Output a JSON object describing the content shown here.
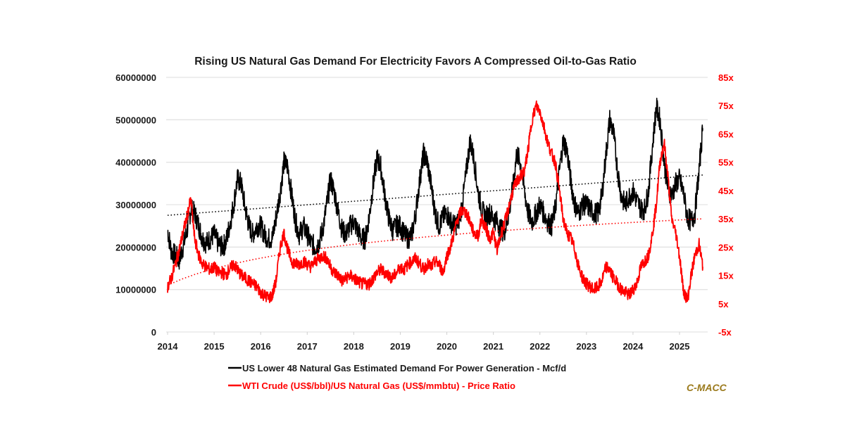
{
  "chart_data": {
    "type": "line",
    "title": "Rising US Natural Gas Demand For Electricity Favors A Compressed Oil-to-Gas Ratio",
    "xlabel": "",
    "ylabel_left": "",
    "ylabel_right": "",
    "x_range": [
      2014.0,
      2025.55
    ],
    "x_ticks": [
      "2014",
      "2015",
      "2016",
      "2017",
      "2018",
      "2019",
      "2020",
      "2021",
      "2022",
      "2023",
      "2024",
      "2025"
    ],
    "y_left": {
      "range": [
        0,
        60000000
      ],
      "ticks": [
        0,
        10000000,
        20000000,
        30000000,
        40000000,
        50000000,
        60000000
      ],
      "tick_labels": [
        "0",
        "10000000",
        "20000000",
        "30000000",
        "40000000",
        "50000000",
        "60000000"
      ]
    },
    "y_right": {
      "range": [
        -5,
        85
      ],
      "ticks": [
        -5,
        5,
        15,
        25,
        35,
        45,
        55,
        65,
        75,
        85
      ],
      "tick_labels": [
        "-5x",
        "5x",
        "15x",
        "25x",
        "35x",
        "45x",
        "55x",
        "65x",
        "75x",
        "85x"
      ]
    },
    "grid": true,
    "legend_position": "bottom",
    "series": [
      {
        "name": "US Lower 48 Natural Gas Estimated Demand For Power Generation - Mcf/d",
        "axis": "left",
        "color": "#000000",
        "x": [
          2014.0,
          2014.08,
          2014.17,
          2014.25,
          2014.33,
          2014.42,
          2014.5,
          2014.58,
          2014.67,
          2014.75,
          2014.83,
          2014.92,
          2015.0,
          2015.08,
          2015.17,
          2015.25,
          2015.33,
          2015.42,
          2015.5,
          2015.58,
          2015.67,
          2015.75,
          2015.83,
          2015.92,
          2016.0,
          2016.08,
          2016.17,
          2016.25,
          2016.33,
          2016.42,
          2016.5,
          2016.58,
          2016.67,
          2016.75,
          2016.83,
          2016.92,
          2017.0,
          2017.08,
          2017.17,
          2017.25,
          2017.33,
          2017.42,
          2017.5,
          2017.58,
          2017.67,
          2017.75,
          2017.83,
          2017.92,
          2018.0,
          2018.08,
          2018.17,
          2018.25,
          2018.33,
          2018.42,
          2018.5,
          2018.58,
          2018.67,
          2018.75,
          2018.83,
          2018.92,
          2019.0,
          2019.08,
          2019.17,
          2019.25,
          2019.33,
          2019.42,
          2019.5,
          2019.58,
          2019.67,
          2019.75,
          2019.83,
          2019.92,
          2020.0,
          2020.08,
          2020.17,
          2020.25,
          2020.33,
          2020.42,
          2020.5,
          2020.58,
          2020.67,
          2020.75,
          2020.83,
          2020.92,
          2021.0,
          2021.08,
          2021.17,
          2021.25,
          2021.33,
          2021.42,
          2021.5,
          2021.58,
          2021.67,
          2021.75,
          2021.83,
          2021.92,
          2022.0,
          2022.08,
          2022.17,
          2022.25,
          2022.33,
          2022.42,
          2022.5,
          2022.58,
          2022.67,
          2022.75,
          2022.83,
          2022.92,
          2023.0,
          2023.08,
          2023.17,
          2023.25,
          2023.33,
          2023.42,
          2023.5,
          2023.58,
          2023.67,
          2023.75,
          2023.83,
          2023.92,
          2024.0,
          2024.08,
          2024.17,
          2024.25,
          2024.33,
          2024.42,
          2024.5,
          2024.58,
          2024.67,
          2024.75,
          2024.83,
          2024.92,
          2025.0,
          2025.08,
          2025.17,
          2025.25,
          2025.33,
          2025.42,
          2025.5
        ],
        "values": [
          24000000,
          19000000,
          18000000,
          17000000,
          20000000,
          24000000,
          29000000,
          28000000,
          25000000,
          22000000,
          21000000,
          22000000,
          23000000,
          21000000,
          20000000,
          21000000,
          25000000,
          30000000,
          36000000,
          35000000,
          29000000,
          25000000,
          23000000,
          25000000,
          25000000,
          23000000,
          22000000,
          22000000,
          27000000,
          33000000,
          40000000,
          39000000,
          32000000,
          26000000,
          23000000,
          25000000,
          23000000,
          21000000,
          20000000,
          21000000,
          24000000,
          30000000,
          36000000,
          33000000,
          28000000,
          24000000,
          23000000,
          25000000,
          26000000,
          24000000,
          22000000,
          22000000,
          27000000,
          35000000,
          41000000,
          39000000,
          32000000,
          27000000,
          24000000,
          25000000,
          25000000,
          23000000,
          22000000,
          23000000,
          28000000,
          36000000,
          42000000,
          40000000,
          34000000,
          28000000,
          25000000,
          27000000,
          28000000,
          26000000,
          25000000,
          26000000,
          30000000,
          38000000,
          45000000,
          41000000,
          33000000,
          29000000,
          27000000,
          28000000,
          27000000,
          26000000,
          24000000,
          24000000,
          28000000,
          34000000,
          42000000,
          40000000,
          33000000,
          28000000,
          26000000,
          28000000,
          30000000,
          28000000,
          26000000,
          25000000,
          29000000,
          38000000,
          45000000,
          43000000,
          35000000,
          30000000,
          28000000,
          30000000,
          30000000,
          29000000,
          28000000,
          28000000,
          32000000,
          42000000,
          50000000,
          47000000,
          38000000,
          32000000,
          30000000,
          32000000,
          33000000,
          31000000,
          29000000,
          29000000,
          33000000,
          44000000,
          53000000,
          50000000,
          40000000,
          34000000,
          32000000,
          35000000,
          36000000,
          33000000,
          27000000,
          26000000,
          28000000,
          38000000,
          48000000
        ]
      },
      {
        "name": "WTI Crude (US$/bbl)/US Natural Gas (US$/mmbtu) - Price Ratio",
        "axis": "right",
        "color": "#ff0000",
        "x": [
          2014.0,
          2014.08,
          2014.17,
          2014.25,
          2014.33,
          2014.42,
          2014.5,
          2014.58,
          2014.67,
          2014.75,
          2014.83,
          2014.92,
          2015.0,
          2015.08,
          2015.17,
          2015.25,
          2015.33,
          2015.42,
          2015.5,
          2015.58,
          2015.67,
          2015.75,
          2015.83,
          2015.92,
          2016.0,
          2016.08,
          2016.17,
          2016.25,
          2016.33,
          2016.42,
          2016.5,
          2016.58,
          2016.67,
          2016.75,
          2016.83,
          2016.92,
          2017.0,
          2017.08,
          2017.17,
          2017.25,
          2017.33,
          2017.42,
          2017.5,
          2017.58,
          2017.67,
          2017.75,
          2017.83,
          2017.92,
          2018.0,
          2018.08,
          2018.17,
          2018.25,
          2018.33,
          2018.42,
          2018.5,
          2018.58,
          2018.67,
          2018.75,
          2018.83,
          2018.92,
          2019.0,
          2019.08,
          2019.17,
          2019.25,
          2019.33,
          2019.42,
          2019.5,
          2019.58,
          2019.67,
          2019.75,
          2019.83,
          2019.92,
          2020.0,
          2020.08,
          2020.17,
          2020.25,
          2020.33,
          2020.42,
          2020.5,
          2020.58,
          2020.67,
          2020.75,
          2020.83,
          2020.92,
          2021.0,
          2021.08,
          2021.17,
          2021.25,
          2021.33,
          2021.42,
          2021.5,
          2021.58,
          2021.67,
          2021.75,
          2021.83,
          2021.92,
          2022.0,
          2022.08,
          2022.17,
          2022.25,
          2022.33,
          2022.42,
          2022.5,
          2022.58,
          2022.67,
          2022.75,
          2022.83,
          2022.92,
          2023.0,
          2023.08,
          2023.17,
          2023.25,
          2023.33,
          2023.42,
          2023.5,
          2023.58,
          2023.67,
          2023.75,
          2023.83,
          2023.92,
          2024.0,
          2024.08,
          2024.17,
          2024.25,
          2024.33,
          2024.42,
          2024.5,
          2024.58,
          2024.67,
          2024.75,
          2024.83,
          2024.92,
          2025.0,
          2025.08,
          2025.17,
          2025.25,
          2025.33,
          2025.42,
          2025.5
        ],
        "values": [
          11,
          14,
          19,
          24,
          30,
          36,
          42,
          28,
          22,
          19,
          18,
          17,
          18,
          16,
          16,
          15,
          17,
          19,
          17,
          15,
          14,
          13,
          12,
          11,
          9,
          8,
          7,
          8,
          13,
          25,
          30,
          24,
          20,
          19,
          19,
          20,
          19,
          18,
          20,
          21,
          22,
          21,
          18,
          16,
          15,
          13,
          14,
          15,
          14,
          13,
          12,
          12,
          12,
          14,
          16,
          17,
          16,
          15,
          14,
          16,
          18,
          17,
          19,
          20,
          21,
          19,
          17,
          19,
          18,
          20,
          19,
          16,
          22,
          25,
          31,
          36,
          38,
          37,
          34,
          30,
          29,
          35,
          32,
          28,
          30,
          24,
          30,
          34,
          39,
          45,
          48,
          50,
          52,
          60,
          70,
          75,
          73,
          68,
          62,
          58,
          55,
          45,
          35,
          30,
          28,
          24,
          18,
          14,
          12,
          11,
          10,
          11,
          13,
          18,
          17,
          14,
          12,
          10,
          9,
          8,
          10,
          12,
          18,
          20,
          22,
          30,
          40,
          55,
          62,
          50,
          35,
          30,
          22,
          10,
          6,
          15,
          22,
          26,
          18
        ]
      }
    ],
    "trendlines": [
      {
        "series": "US Lower 48 Natural Gas Estimated Demand For Power Generation - Mcf/d",
        "style": "dotted",
        "color": "#000000",
        "start": [
          2014.0,
          27500000
        ],
        "end": [
          2025.5,
          37000000
        ]
      },
      {
        "series": "WTI Crude (US$/bbl)/US Natural Gas (US$/mmbtu) - Price Ratio",
        "style": "dotted",
        "color": "#ff0000",
        "type": "logarithmic",
        "start": [
          2014.0,
          11.5
        ],
        "end": [
          2025.5,
          35
        ]
      }
    ]
  },
  "legend": [
    {
      "label": "US Lower 48 Natural Gas Estimated Demand For Power Generation - Mcf/d",
      "color": "#000000"
    },
    {
      "label": "WTI Crude (US$/bbl)/US Natural Gas (US$/mmbtu) - Price Ratio",
      "color": "#ff0000"
    }
  ],
  "watermark": {
    "text": "C-MACC",
    "color": "#9b7a1c"
  }
}
